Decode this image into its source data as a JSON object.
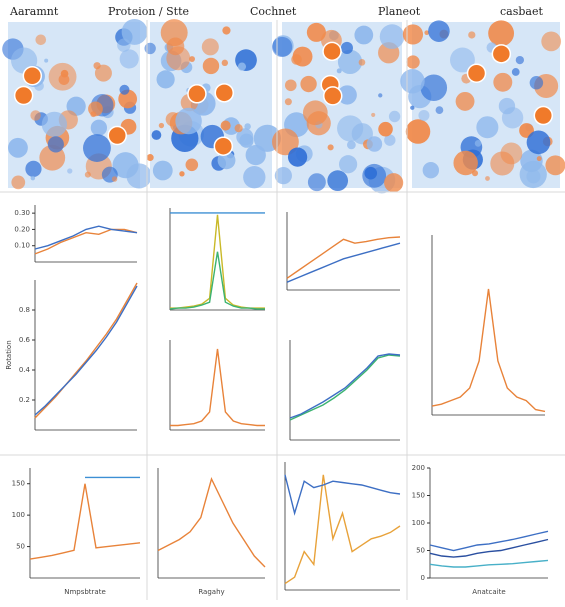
{
  "headers": [
    "Aaramnt",
    "Proteion / Stte",
    "Cochnet",
    "Planeot",
    "casbaet"
  ],
  "chart_data": [
    {
      "type": "line",
      "x": [
        0,
        1,
        2,
        3,
        4,
        5,
        6,
        7,
        8
      ],
      "xlim": [
        0,
        8
      ],
      "ylim": [
        0,
        0.35
      ],
      "yticks": [
        {
          "value": 0.1,
          "label": "0.10"
        },
        {
          "value": 0.2,
          "label": "0.20"
        },
        {
          "value": 0.3,
          "label": "0.30"
        }
      ],
      "series": [
        {
          "color": "#e8833a",
          "values": [
            0.05,
            0.08,
            0.12,
            0.15,
            0.18,
            0.17,
            0.2,
            0.2,
            0.18
          ]
        },
        {
          "color": "#3d6fc4",
          "values": [
            0.08,
            0.1,
            0.13,
            0.16,
            0.2,
            0.22,
            0.2,
            0.19,
            0.18
          ]
        }
      ]
    },
    {
      "type": "line",
      "x": [
        0,
        1,
        2,
        3,
        4,
        5,
        6,
        7,
        8,
        9,
        10
      ],
      "xlim": [
        0,
        10
      ],
      "ylim": [
        0,
        1
      ],
      "yticks": [
        0.2,
        0.4,
        0.6,
        0.8
      ],
      "ylabel": "Rotation",
      "series": [
        {
          "color": "#e8833a",
          "values": [
            0.08,
            0.15,
            0.22,
            0.3,
            0.38,
            0.46,
            0.55,
            0.64,
            0.74,
            0.86,
            0.98
          ]
        },
        {
          "color": "#3d6fc4",
          "values": [
            0.1,
            0.16,
            0.23,
            0.3,
            0.37,
            0.45,
            0.53,
            0.62,
            0.72,
            0.84,
            0.96
          ]
        }
      ]
    },
    {
      "type": "line",
      "x": [
        0,
        1,
        2,
        3,
        4,
        5,
        6,
        7,
        8,
        9,
        10,
        11,
        12
      ],
      "xlim": [
        0,
        12
      ],
      "ylim": [
        0,
        1.05
      ],
      "series": [
        {
          "color": "#3d8fd4",
          "values": [
            1,
            1,
            1,
            1,
            1,
            1,
            1,
            1,
            1,
            1,
            1,
            1,
            1
          ]
        },
        {
          "color": "#c9b928",
          "values": [
            0.02,
            0.02,
            0.03,
            0.04,
            0.06,
            0.12,
            0.98,
            0.12,
            0.05,
            0.03,
            0.02,
            0.02,
            0.02
          ]
        },
        {
          "color": "#3cb371",
          "values": [
            0.01,
            0.02,
            0.02,
            0.03,
            0.05,
            0.08,
            0.6,
            0.08,
            0.04,
            0.02,
            0.02,
            0.01,
            0.01
          ]
        }
      ]
    },
    {
      "type": "line",
      "x": [
        0,
        1,
        2,
        3,
        4,
        5,
        6,
        7,
        8,
        9,
        10,
        11,
        12
      ],
      "xlim": [
        0,
        12
      ],
      "ylim": [
        0,
        1
      ],
      "series": [
        {
          "color": "#e8833a",
          "values": [
            0.05,
            0.05,
            0.06,
            0.07,
            0.1,
            0.2,
            0.9,
            0.2,
            0.1,
            0.07,
            0.06,
            0.05,
            0.05
          ]
        }
      ]
    },
    {
      "type": "line",
      "x": [
        0,
        1,
        2,
        3,
        4,
        5,
        6,
        7,
        8,
        9,
        10
      ],
      "xlim": [
        0,
        10
      ],
      "ylim": [
        0,
        1
      ],
      "series": [
        {
          "color": "#e8833a",
          "values": [
            0.15,
            0.25,
            0.35,
            0.45,
            0.55,
            0.65,
            0.6,
            0.62,
            0.65,
            0.67,
            0.68
          ]
        },
        {
          "color": "#3d6fc4",
          "values": [
            0.1,
            0.16,
            0.22,
            0.28,
            0.34,
            0.4,
            0.44,
            0.48,
            0.52,
            0.56,
            0.6
          ]
        }
      ]
    },
    {
      "type": "line",
      "x": [
        0,
        1,
        2,
        3,
        4,
        5,
        6,
        7,
        8,
        9,
        10
      ],
      "xlim": [
        0,
        10
      ],
      "ylim": [
        0,
        1
      ],
      "series": [
        {
          "color": "#3cb371",
          "values": [
            0.2,
            0.25,
            0.3,
            0.35,
            0.42,
            0.5,
            0.6,
            0.7,
            0.82,
            0.85,
            0.84
          ]
        },
        {
          "color": "#3d6fc4",
          "values": [
            0.22,
            0.26,
            0.32,
            0.38,
            0.45,
            0.52,
            0.62,
            0.72,
            0.84,
            0.86,
            0.85
          ]
        }
      ]
    },
    {
      "type": "line",
      "x": [
        0,
        1,
        2,
        3,
        4,
        5,
        6,
        7,
        8,
        9,
        10,
        11,
        12
      ],
      "xlim": [
        0,
        12
      ],
      "ylim": [
        0,
        1
      ],
      "series": [
        {
          "color": "#e8833a",
          "values": [
            0.05,
            0.06,
            0.08,
            0.1,
            0.15,
            0.3,
            0.7,
            0.3,
            0.15,
            0.1,
            0.08,
            0.03,
            0.02
          ]
        }
      ]
    },
    {
      "type": "line",
      "x": [
        0,
        1,
        2,
        3,
        4,
        5,
        6,
        7,
        8,
        9,
        10
      ],
      "xlim": [
        0,
        10
      ],
      "ylim": [
        0,
        175
      ],
      "yticks": [
        50,
        100,
        150
      ],
      "xlabel": "Nmpsbtrate",
      "series": [
        {
          "color": "#e8833a",
          "values": [
            30,
            33,
            36,
            40,
            44,
            150,
            48,
            50,
            52,
            54,
            56
          ]
        },
        {
          "color": "#3d8fd4",
          "values": [
            null,
            null,
            null,
            null,
            null,
            160,
            160,
            160,
            160,
            160,
            160
          ]
        }
      ]
    },
    {
      "type": "line",
      "x": [
        0,
        1,
        2,
        3,
        4,
        5,
        6,
        7,
        8,
        9,
        10
      ],
      "xlim": [
        0,
        10
      ],
      "ylim": [
        0,
        1
      ],
      "xlabel": "Ragahy",
      "series": [
        {
          "color": "#e8833a",
          "values": [
            0.25,
            0.3,
            0.35,
            0.42,
            0.55,
            0.9,
            0.7,
            0.5,
            0.35,
            0.2,
            0.1
          ]
        }
      ]
    },
    {
      "type": "line",
      "x": [
        0,
        1,
        2,
        3,
        4,
        5,
        6,
        7,
        8,
        9,
        10,
        11,
        12
      ],
      "xlim": [
        0,
        12
      ],
      "ylim": [
        0,
        1
      ],
      "series": [
        {
          "color": "#e8a23a",
          "values": [
            0.05,
            0.1,
            0.3,
            0.2,
            0.9,
            0.4,
            0.6,
            0.3,
            0.35,
            0.4,
            0.42,
            0.45,
            0.5
          ]
        },
        {
          "color": "#3d6fc4",
          "values": [
            0.9,
            0.6,
            0.85,
            0.8,
            0.82,
            0.85,
            0.84,
            0.83,
            0.82,
            0.8,
            0.78,
            0.76,
            0.75
          ]
        }
      ]
    },
    {
      "type": "line",
      "x": [
        0,
        1,
        2,
        3,
        4,
        5,
        6,
        7,
        8,
        9,
        10
      ],
      "xlim": [
        0,
        10
      ],
      "ylim": [
        0,
        200
      ],
      "yticks": [
        0,
        50,
        100,
        150,
        200
      ],
      "xlabel": "Anatcaite",
      "series": [
        {
          "color": "#3d6fc4",
          "values": [
            60,
            55,
            50,
            55,
            60,
            62,
            66,
            70,
            75,
            80,
            85
          ]
        },
        {
          "color": "#2a4fa0",
          "values": [
            45,
            40,
            38,
            40,
            45,
            48,
            50,
            55,
            60,
            65,
            70
          ]
        },
        {
          "color": "#48b0c8",
          "values": [
            25,
            22,
            20,
            20,
            22,
            24,
            25,
            26,
            28,
            30,
            32
          ]
        }
      ]
    }
  ]
}
